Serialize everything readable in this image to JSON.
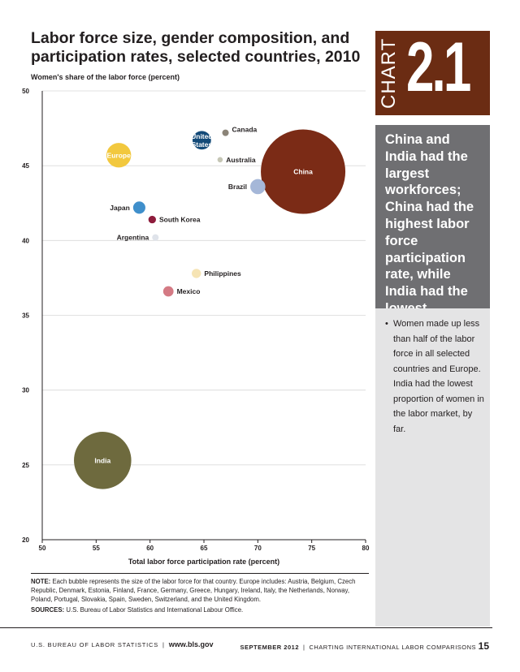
{
  "page": {
    "title": "Labor force size, gender composition, and participation rates, selected countries, 2010",
    "badge_word": "CHART",
    "badge_number": "2.1",
    "callout": "China and India had the largest workforces; China had the highest labor force participation rate, while India had the lowest.",
    "sidebar_bullet": "•",
    "sidebar_text": "Women made up less than half of the labor force in all selected countries and Europe. India had the lowest proportion of women in the labor market, by far.",
    "note_label": "NOTE:",
    "note_text": "Each bubble represents the size of the labor force for that country. Europe includes: Austria, Belgium, Czech Republic, Denmark, Estonia, Finland, France, Germany, Greece, Hungary, Ireland, Italy, the Netherlands, Norway, Poland, Portugal, Slovakia, Spain, Sweden, Switzerland, and the United Kingdom.",
    "sources_label": "SOURCES:",
    "sources_text": "U.S. Bureau of Labor Statistics and International Labour Office.",
    "footer_left": "U.S. BUREAU OF LABOR STATISTICS",
    "footer_sep": "|",
    "footer_url": "www.bls.gov",
    "footer_month": "SEPTEMBER 2012",
    "footer_pub": "CHARTING INTERNATIONAL LABOR COMPARISONS",
    "footer_page": "15"
  },
  "chart_data": {
    "type": "scatter",
    "subtype": "bubble",
    "title": "Labor force size, gender composition, and participation rates, selected countries, 2010",
    "xlabel": "Total labor force participation rate (percent)",
    "ylabel": "Women's share of the labor force (percent)",
    "xlim": [
      50,
      80
    ],
    "ylim": [
      20,
      50
    ],
    "x_ticks": [
      50,
      55,
      60,
      65,
      70,
      75,
      80
    ],
    "y_ticks": [
      20,
      25,
      30,
      35,
      40,
      45,
      50
    ],
    "grid": true,
    "bubble_size_meaning": "size of the labor force",
    "points": [
      {
        "label": "China",
        "x": 74.2,
        "y": 44.6,
        "size": 100,
        "color": "#7b2b16",
        "label_color": "#ffffff",
        "label_pos": "center",
        "label_lines": [
          "China"
        ]
      },
      {
        "label": "India",
        "x": 55.6,
        "y": 25.3,
        "size": 46,
        "color": "#6e6a3e",
        "label_color": "#ffffff",
        "label_pos": "center",
        "label_lines": [
          "India"
        ]
      },
      {
        "label": "Europe",
        "x": 57.1,
        "y": 45.7,
        "size": 8.5,
        "color": "#f2c83e",
        "label_color": "#ffffff",
        "label_pos": "center",
        "label_lines": [
          "Europe"
        ]
      },
      {
        "label": "United States",
        "x": 64.8,
        "y": 46.7,
        "size": 4.8,
        "color": "#134a78",
        "label_color": "#ffffff",
        "label_pos": "center",
        "label_lines": [
          "United",
          "States"
        ]
      },
      {
        "label": "Brazil",
        "x": 70.0,
        "y": 43.6,
        "size": 3.2,
        "color": "#a5b7d8",
        "label_color": "#231f20",
        "label_pos": "left",
        "label_lines": [
          "Brazil"
        ]
      },
      {
        "label": "Japan",
        "x": 59.0,
        "y": 42.2,
        "size": 2.1,
        "color": "#3f8fcb",
        "label_color": "#231f20",
        "label_pos": "left",
        "label_lines": [
          "Japan"
        ]
      },
      {
        "label": "Mexico",
        "x": 61.7,
        "y": 36.6,
        "size": 1.5,
        "color": "#d47a84",
        "label_color": "#231f20",
        "label_pos": "right",
        "label_lines": [
          "Mexico"
        ]
      },
      {
        "label": "Philippines",
        "x": 64.3,
        "y": 37.8,
        "size": 1.2,
        "color": "#f6e4b4",
        "label_color": "#231f20",
        "label_pos": "right",
        "label_lines": [
          "Philippines"
        ]
      },
      {
        "label": "South Korea",
        "x": 60.2,
        "y": 41.4,
        "size": 0.8,
        "color": "#8e1c3c",
        "label_color": "#231f20",
        "label_pos": "right",
        "label_lines": [
          "South Korea"
        ]
      },
      {
        "label": "Argentina",
        "x": 60.5,
        "y": 40.2,
        "size": 0.6,
        "color": "#dfe3ea",
        "label_color": "#231f20",
        "label_pos": "left",
        "label_lines": [
          "Argentina"
        ]
      },
      {
        "label": "Canada",
        "x": 67.0,
        "y": 47.2,
        "size": 0.6,
        "color": "#8b8478",
        "label_color": "#231f20",
        "label_pos": "right",
        "label_lines": [
          "Canada"
        ]
      },
      {
        "label": "Australia",
        "x": 66.5,
        "y": 45.4,
        "size": 0.4,
        "color": "#c5c6b5",
        "label_color": "#231f20",
        "label_pos": "right",
        "label_lines": [
          "Australia"
        ]
      }
    ]
  }
}
